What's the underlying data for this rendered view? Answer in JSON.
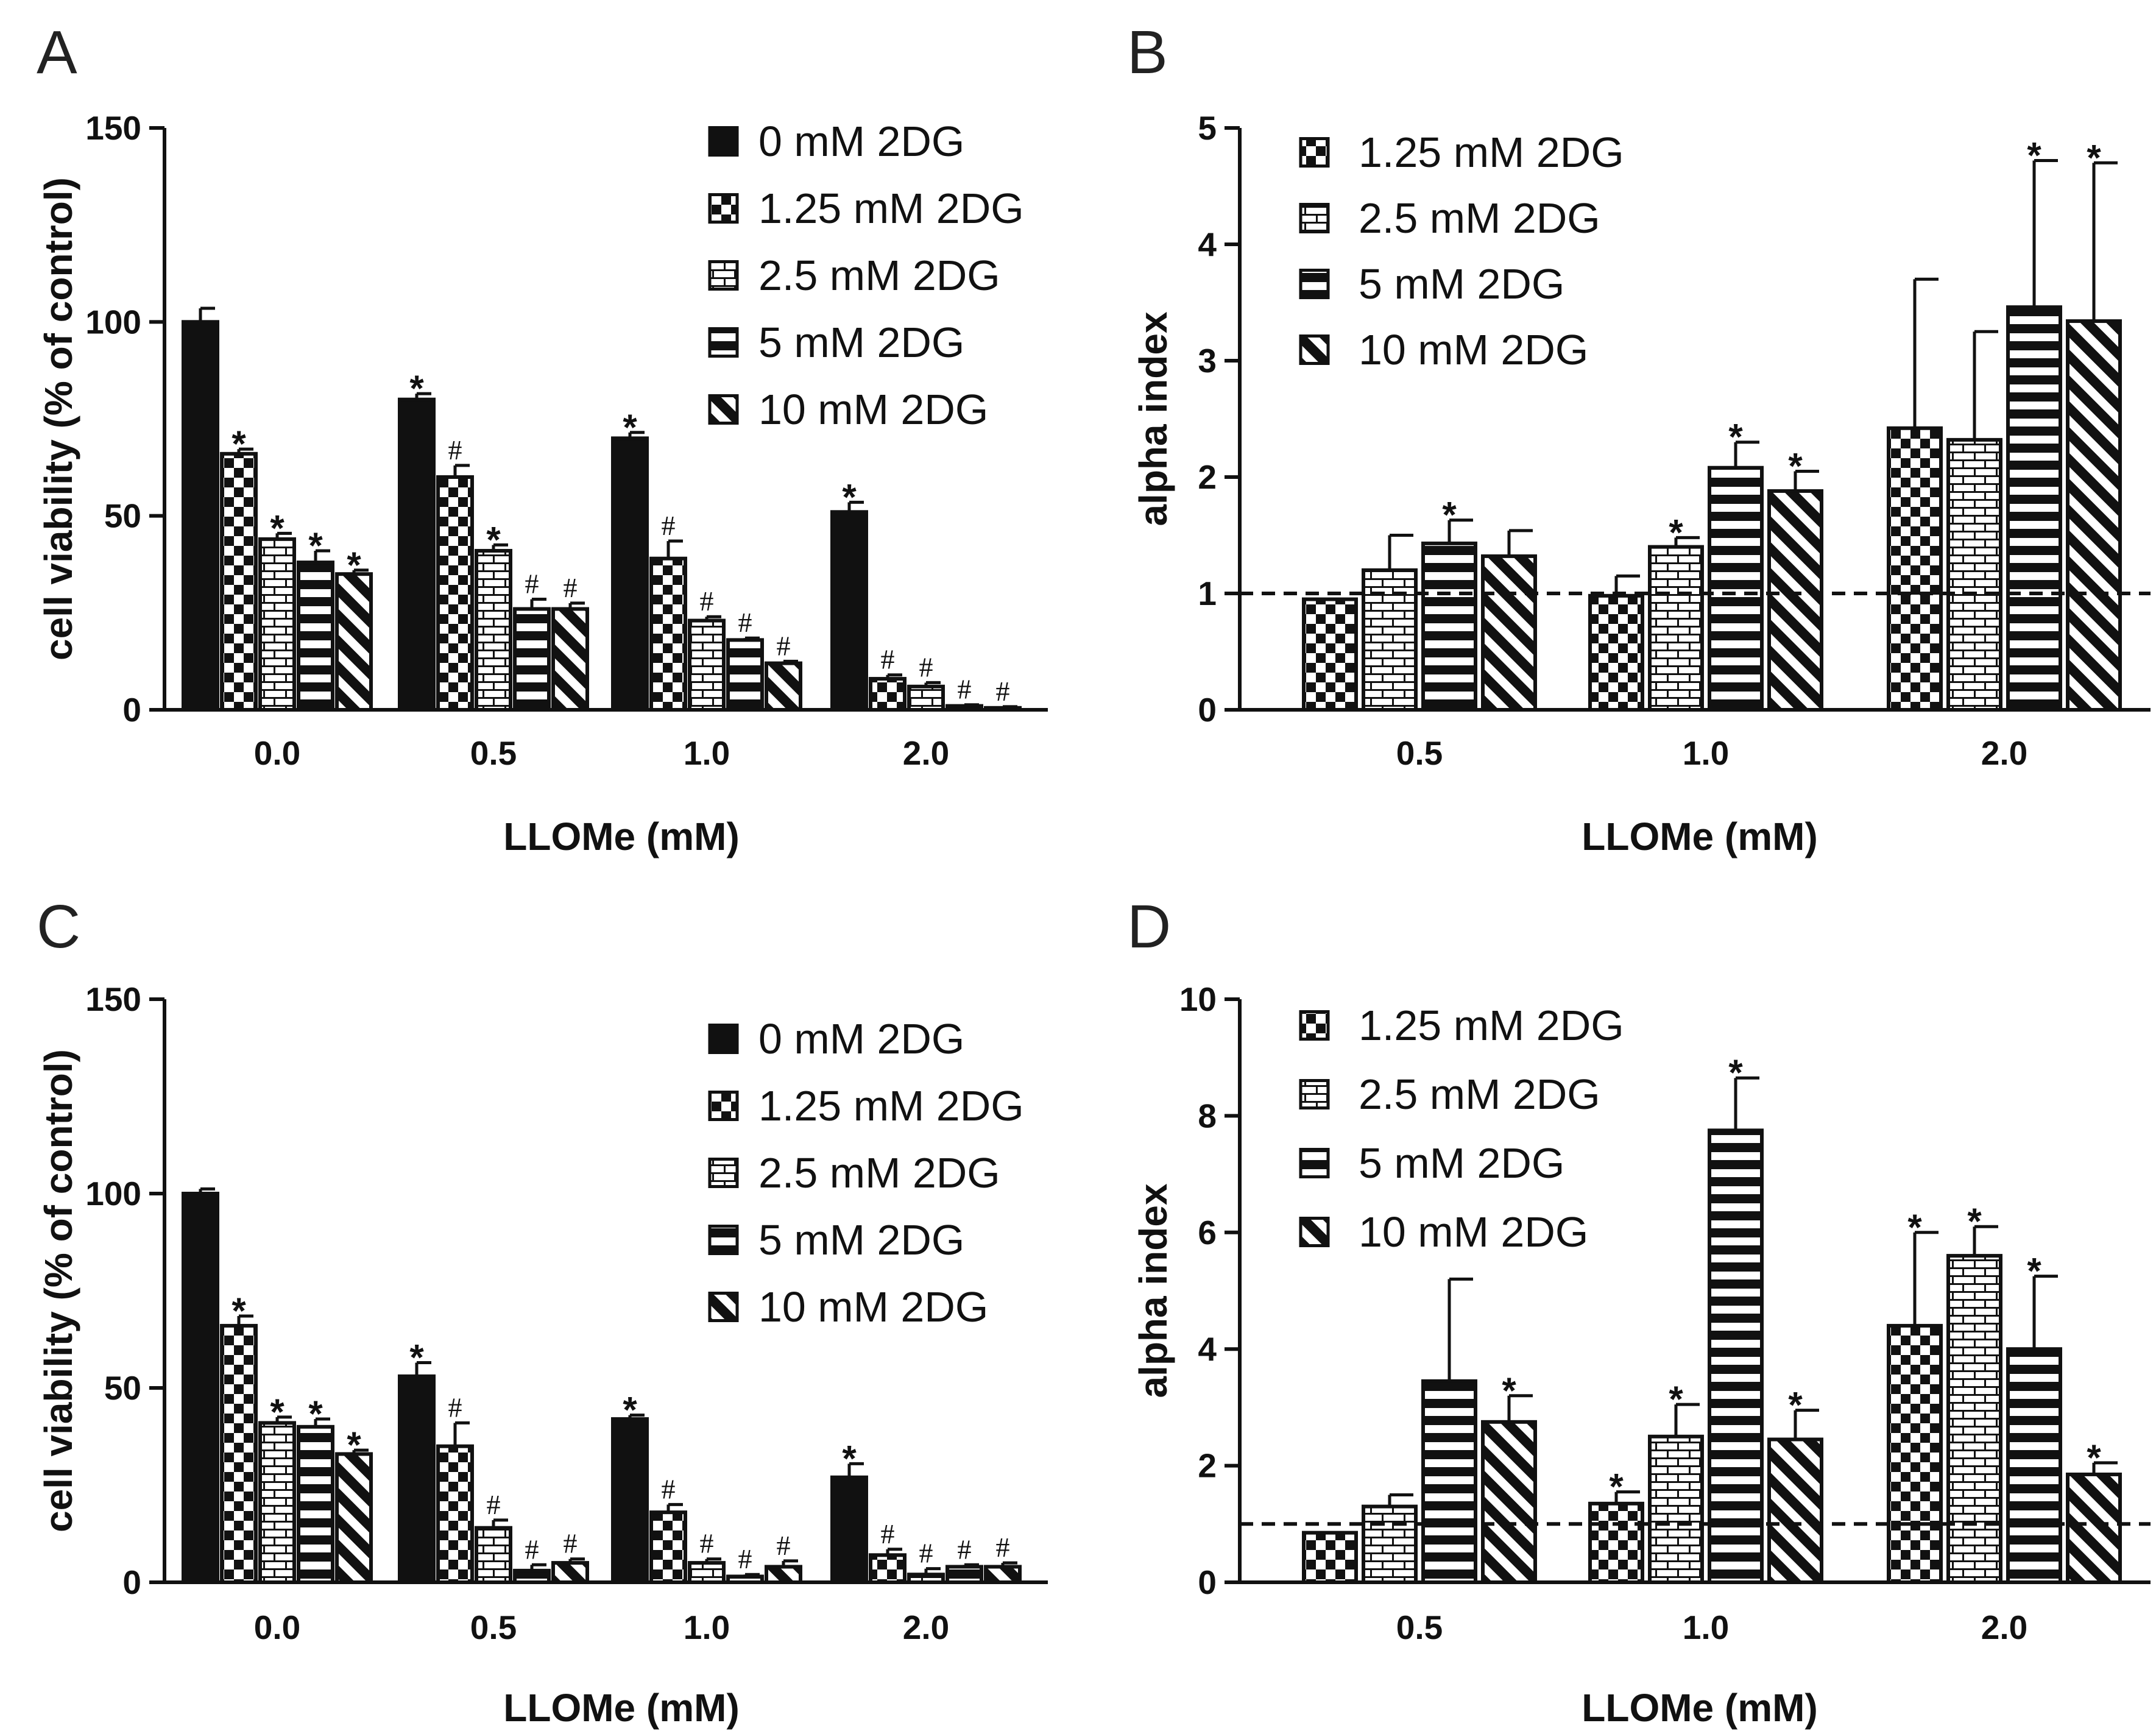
{
  "colors": {
    "ink": "#111111",
    "background": "#ffffff"
  },
  "chart_data": [
    {
      "panel": "A",
      "type": "bar",
      "xlabel": "LLOMe (mM)",
      "ylabel": "cell viability (% of control)",
      "ylim": [
        0,
        150
      ],
      "yticks": [
        "0",
        "50",
        "100",
        "150"
      ],
      "categories": [
        "0.0",
        "0.5",
        "1.0",
        "2.0"
      ],
      "series": [
        {
          "name": "0 mM 2DG",
          "pattern": "solid",
          "values": [
            100,
            80,
            70,
            51
          ],
          "errors": [
            3.5,
            1.5,
            1.5,
            2.5
          ],
          "marks": [
            "",
            "*",
            "*",
            "*"
          ]
        },
        {
          "name": "1.25 mM 2DG",
          "pattern": "checker",
          "values": [
            66,
            60,
            39,
            8
          ],
          "errors": [
            1.2,
            3,
            4.5,
            1
          ],
          "marks": [
            "*",
            "#",
            "#",
            "#"
          ]
        },
        {
          "name": "2.5 mM 2DG",
          "pattern": "brick",
          "values": [
            44,
            41,
            23,
            6
          ],
          "errors": [
            1.5,
            1.5,
            1,
            1
          ],
          "marks": [
            "*",
            "*",
            "#",
            "#"
          ]
        },
        {
          "name": "5 mM 2DG",
          "pattern": "hstripe",
          "values": [
            38,
            26,
            18,
            1
          ],
          "errors": [
            3,
            2.5,
            0.5,
            0.3
          ],
          "marks": [
            "*",
            "#",
            "#",
            "#"
          ]
        },
        {
          "name": "10 mM 2DG",
          "pattern": "diag",
          "values": [
            35,
            26,
            12,
            0.5
          ],
          "errors": [
            1,
            1.5,
            0.5,
            0.3
          ],
          "marks": [
            "*",
            "#",
            "#",
            "#"
          ]
        }
      ]
    },
    {
      "panel": "B",
      "type": "bar",
      "xlabel": "LLOMe (mM)",
      "ylabel": "alpha index",
      "ylim": [
        0,
        5
      ],
      "yticks": [
        "0",
        "1",
        "2",
        "3",
        "4",
        "5"
      ],
      "reference_line": 1,
      "categories": [
        "0.5",
        "1.0",
        "2.0"
      ],
      "series": [
        {
          "name": "1.25 mM 2DG",
          "pattern": "checker",
          "values": [
            0.95,
            0.98,
            2.42
          ],
          "errors": [
            0,
            0.17,
            1.28
          ],
          "marks": [
            "",
            "",
            ""
          ]
        },
        {
          "name": "2.5 mM 2DG",
          "pattern": "brick",
          "values": [
            1.2,
            1.4,
            2.32
          ],
          "errors": [
            0.3,
            0.08,
            0.93
          ],
          "marks": [
            "",
            "*",
            ""
          ]
        },
        {
          "name": "5 mM 2DG",
          "pattern": "hstripe",
          "values": [
            1.43,
            2.08,
            3.46
          ],
          "errors": [
            0.2,
            0.22,
            1.26
          ],
          "marks": [
            "*",
            "*",
            "*"
          ]
        },
        {
          "name": "10 mM 2DG",
          "pattern": "diag",
          "values": [
            1.32,
            1.88,
            3.34
          ],
          "errors": [
            0.22,
            0.17,
            1.36
          ],
          "marks": [
            "",
            "*",
            "*"
          ]
        }
      ]
    },
    {
      "panel": "C",
      "type": "bar",
      "xlabel": "LLOMe (mM)",
      "ylabel": "cell viability (% of control)",
      "ylim": [
        0,
        150
      ],
      "yticks": [
        "0",
        "50",
        "100",
        "150"
      ],
      "categories": [
        "0.0",
        "0.5",
        "1.0",
        "2.0"
      ],
      "series": [
        {
          "name": "0 mM 2DG",
          "pattern": "solid",
          "values": [
            100,
            53,
            42,
            27
          ],
          "errors": [
            1.2,
            3.5,
            1,
            3.5
          ],
          "marks": [
            "",
            "*",
            "*",
            "*"
          ]
        },
        {
          "name": "1.25 mM 2DG",
          "pattern": "checker",
          "values": [
            66,
            35,
            18,
            7
          ],
          "errors": [
            2.5,
            6,
            2,
            1.5
          ],
          "marks": [
            "*",
            "#",
            "#",
            "#"
          ]
        },
        {
          "name": "2.5 mM 2DG",
          "pattern": "brick",
          "values": [
            41,
            14,
            5,
            2
          ],
          "errors": [
            1.5,
            2,
            1,
            1.5
          ],
          "marks": [
            "*",
            "#",
            "#",
            "#"
          ]
        },
        {
          "name": "5 mM 2DG",
          "pattern": "hstripe",
          "values": [
            40,
            3,
            1.5,
            4
          ],
          "errors": [
            2,
            1.5,
            0.5,
            0.5
          ],
          "marks": [
            "*",
            "#",
            "#",
            "#"
          ]
        },
        {
          "name": "10 mM 2DG",
          "pattern": "diag",
          "values": [
            33,
            5,
            4,
            4
          ],
          "errors": [
            1,
            1,
            1.5,
            1
          ],
          "marks": [
            "*",
            "#",
            "#",
            "#"
          ]
        }
      ]
    },
    {
      "panel": "D",
      "type": "bar",
      "xlabel": "LLOMe (mM)",
      "ylabel": "alpha index",
      "ylim": [
        0,
        10
      ],
      "yticks": [
        "0",
        "2",
        "4",
        "6",
        "8",
        "10"
      ],
      "reference_line": 1,
      "categories": [
        "0.5",
        "1.0",
        "2.0"
      ],
      "series": [
        {
          "name": "1.25 mM 2DG",
          "pattern": "checker",
          "values": [
            0.85,
            1.35,
            4.4
          ],
          "errors": [
            0,
            0.2,
            1.6
          ],
          "marks": [
            "",
            "*",
            "*"
          ]
        },
        {
          "name": "2.5 mM 2DG",
          "pattern": "brick",
          "values": [
            1.3,
            2.5,
            5.6
          ],
          "errors": [
            0.2,
            0.55,
            0.5
          ],
          "marks": [
            "",
            "*",
            "*"
          ]
        },
        {
          "name": "5 mM 2DG",
          "pattern": "hstripe",
          "values": [
            3.45,
            7.75,
            4.0
          ],
          "errors": [
            1.75,
            0.9,
            1.25
          ],
          "marks": [
            "",
            "*",
            "*"
          ]
        },
        {
          "name": "10 mM 2DG",
          "pattern": "diag",
          "values": [
            2.75,
            2.45,
            1.85
          ],
          "errors": [
            0.45,
            0.5,
            0.2
          ],
          "marks": [
            "*",
            "*",
            "*"
          ]
        }
      ]
    }
  ]
}
